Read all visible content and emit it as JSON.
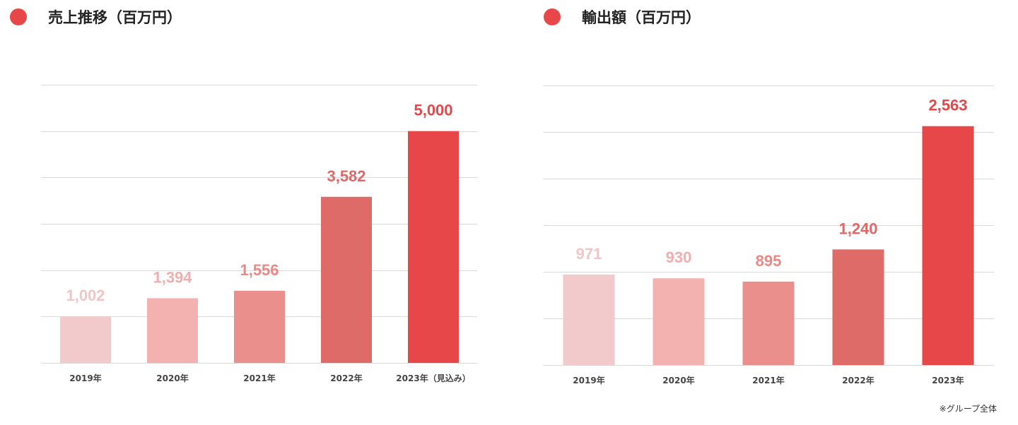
{
  "chart_data": [
    {
      "type": "bar",
      "title": "売上推移（百万円）",
      "categories": [
        "2019年",
        "2020年",
        "2021年",
        "2022年",
        "2023年（見込み）"
      ],
      "values": [
        1002,
        1394,
        1556,
        3582,
        5000
      ],
      "data_labels": [
        "1,002",
        "1,394",
        "1,556",
        "3,582",
        "5,000"
      ],
      "colors": [
        "#f2cacb",
        "#f3b1b0",
        "#eb8f8c",
        "#df6b69",
        "#e8474a"
      ],
      "label_colors": [
        "#f2c5c6",
        "#f2aeae",
        "#ea8886",
        "#df6868",
        "#e8474a"
      ],
      "ylim": [
        0,
        6000
      ],
      "grid": true,
      "xlabel": "",
      "ylabel": ""
    },
    {
      "type": "bar",
      "title": "輸出額（百万円）",
      "categories": [
        "2019年",
        "2020年",
        "2021年",
        "2022年",
        "2023年"
      ],
      "values": [
        971,
        930,
        895,
        1240,
        2563
      ],
      "data_labels": [
        "971",
        "930",
        "895",
        "1,240",
        "2,563"
      ],
      "colors": [
        "#f2cacb",
        "#f3b1b0",
        "#eb8f8c",
        "#df6b69",
        "#e8474a"
      ],
      "label_colors": [
        "#f2c5c6",
        "#f2aeae",
        "#ea8886",
        "#df6868",
        "#e8474a"
      ],
      "ylim": [
        0,
        3000
      ],
      "grid": true,
      "xlabel": "",
      "ylabel": ""
    }
  ],
  "footnote": "※グループ全体",
  "accent_color": "#e8474a"
}
